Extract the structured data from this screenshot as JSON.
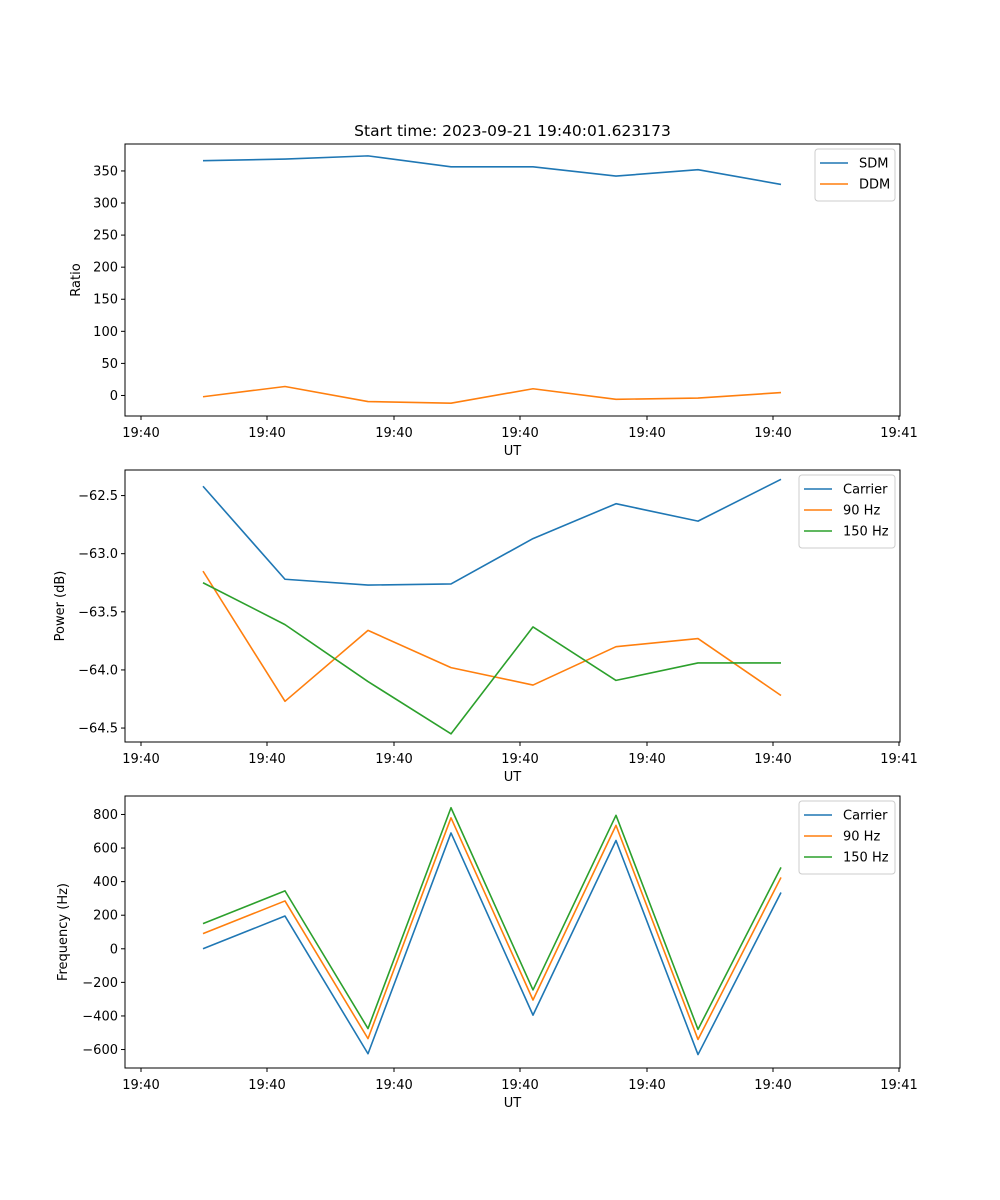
{
  "chart_data": [
    {
      "type": "line",
      "title": "Start time: 2023-09-21 19:40:01.623173",
      "xlabel": "UT",
      "ylabel": "Ratio",
      "x_tick_labels": [
        "19:40",
        "19:40",
        "19:40",
        "19:40",
        "19:40",
        "19:40",
        "19:40",
        "19:41"
      ],
      "x_points": 8,
      "ylim": [
        -32,
        392
      ],
      "yticks": [
        0,
        50,
        100,
        150,
        200,
        250,
        300,
        350
      ],
      "ytick_labels": [
        "0",
        "50",
        "100",
        "150",
        "200",
        "250",
        "300",
        "350"
      ],
      "legend_position": "upper right",
      "series": [
        {
          "name": "SDM",
          "color": "#1f77b4",
          "values": [
            366,
            368.5,
            373.5,
            356.5,
            356.5,
            342,
            352,
            329
          ]
        },
        {
          "name": "DDM",
          "color": "#ff7f0e",
          "values": [
            -2,
            14,
            -9.5,
            -12,
            10.5,
            -6,
            -4,
            4.5
          ]
        }
      ]
    },
    {
      "type": "line",
      "title": "",
      "xlabel": "UT",
      "ylabel": "Power (dB)",
      "x_tick_labels": [
        "19:40",
        "19:40",
        "19:40",
        "19:40",
        "19:40",
        "19:40",
        "19:40",
        "19:41"
      ],
      "x_points": 8,
      "ylim": [
        -64.62,
        -62.28
      ],
      "yticks": [
        -64.5,
        -64.0,
        -63.5,
        -63.0,
        -62.5
      ],
      "ytick_labels": [
        "−64.5",
        "−64.0",
        "−63.5",
        "−63.0",
        "−62.5"
      ],
      "legend_position": "upper right",
      "series": [
        {
          "name": "Carrier",
          "color": "#1f77b4",
          "values": [
            -62.42,
            -63.22,
            -63.27,
            -63.26,
            -62.87,
            -62.57,
            -62.72,
            -62.36
          ]
        },
        {
          "name": "90 Hz",
          "color": "#ff7f0e",
          "values": [
            -63.15,
            -64.27,
            -63.66,
            -63.98,
            -64.13,
            -63.8,
            -63.73,
            -64.22
          ]
        },
        {
          "name": "150 Hz",
          "color": "#2ca02c",
          "values": [
            -63.25,
            -63.61,
            -64.1,
            -64.55,
            -63.63,
            -64.09,
            -63.94,
            -63.94
          ]
        }
      ]
    },
    {
      "type": "line",
      "title": "",
      "xlabel": "UT",
      "ylabel": "Frequency (Hz)",
      "x_tick_labels": [
        "19:40",
        "19:40",
        "19:40",
        "19:40",
        "19:40",
        "19:40",
        "19:40",
        "19:41"
      ],
      "x_points": 8,
      "ylim": [
        -710,
        910
      ],
      "yticks": [
        -600,
        -400,
        -200,
        0,
        200,
        400,
        600,
        800
      ],
      "ytick_labels": [
        "−600",
        "−400",
        "−200",
        "0",
        "200",
        "400",
        "600",
        "800"
      ],
      "legend_position": "upper right",
      "series": [
        {
          "name": "Carrier",
          "color": "#1f77b4",
          "values": [
            0,
            195,
            -625,
            690,
            -395,
            645,
            -630,
            335
          ]
        },
        {
          "name": "90 Hz",
          "color": "#ff7f0e",
          "values": [
            90,
            285,
            -535,
            780,
            -305,
            735,
            -540,
            425
          ]
        },
        {
          "name": "150 Hz",
          "color": "#2ca02c",
          "values": [
            150,
            345,
            -475,
            840,
            -245,
            795,
            -480,
            485
          ]
        }
      ]
    }
  ]
}
